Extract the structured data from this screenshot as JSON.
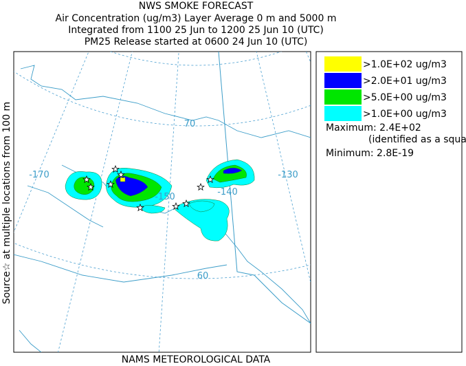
{
  "header": {
    "title": "NWS SMOKE FORECAST",
    "lines": [
      "Air Concentration (ug/m3) Layer Average    0 m and  5000 m",
      "Integrated from 1100 25 Jun to 1200 25 Jun 10 (UTC)",
      "PM25 Release started at 0600 24 Jun 10 (UTC)"
    ]
  },
  "side_label": "Source☆ at multiple locations  from  100 m",
  "map": {
    "labels": [
      "-170",
      "-150",
      "-140",
      "-130",
      "70",
      "60"
    ]
  },
  "legend": {
    "items": [
      {
        "label": ">1.0E+02 ug/m3",
        "color": "#ffff00"
      },
      {
        "label": ">2.0E+01 ug/m3",
        "color": "#0000ff"
      },
      {
        "label": ">5.0E+00 ug/m3",
        "color": "#00e600"
      },
      {
        "label": ">1.0E+00 ug/m3",
        "color": "#00ffff"
      }
    ],
    "maximum": "Maximum: 2.4E+02",
    "maximum_note": "(identified as a square)",
    "minimum": "Minimum: 2.8E-19"
  },
  "footer": "NAMS METEOROLOGICAL DATA"
}
